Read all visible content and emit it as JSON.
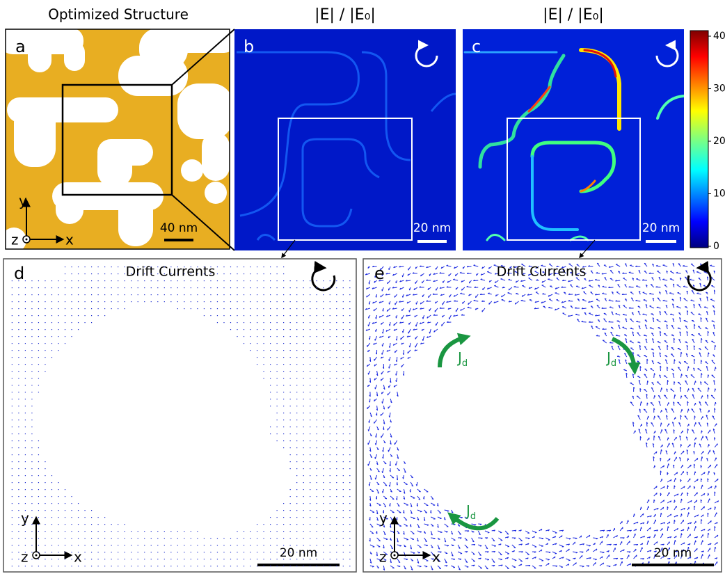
{
  "panels": [
    {
      "label": "a",
      "title": "Optimized Structure",
      "scale_bar": "40 nm",
      "axes": {
        "x": "x",
        "y": "y",
        "z": "z"
      }
    },
    {
      "label": "b",
      "title": "|E| / |E₀|",
      "scale_bar": "20 nm"
    },
    {
      "label": "c",
      "title": "|E| / |E₀|",
      "scale_bar": "20 nm"
    },
    {
      "label": "d",
      "title": "Drift Currents",
      "scale_bar": "20 nm",
      "axes": {
        "x": "x",
        "y": "y",
        "z": "z"
      }
    },
    {
      "label": "e",
      "title": "Drift Currents",
      "scale_bar": "20 nm",
      "axes": {
        "x": "x",
        "y": "y",
        "z": "z"
      },
      "annotations": [
        {
          "main": "J",
          "sub": "d"
        },
        {
          "main": "J",
          "sub": "d"
        },
        {
          "main": "J",
          "sub": "d"
        }
      ]
    }
  ],
  "colorbar": {
    "ticks": [
      0,
      10,
      20,
      30,
      40
    ]
  }
}
